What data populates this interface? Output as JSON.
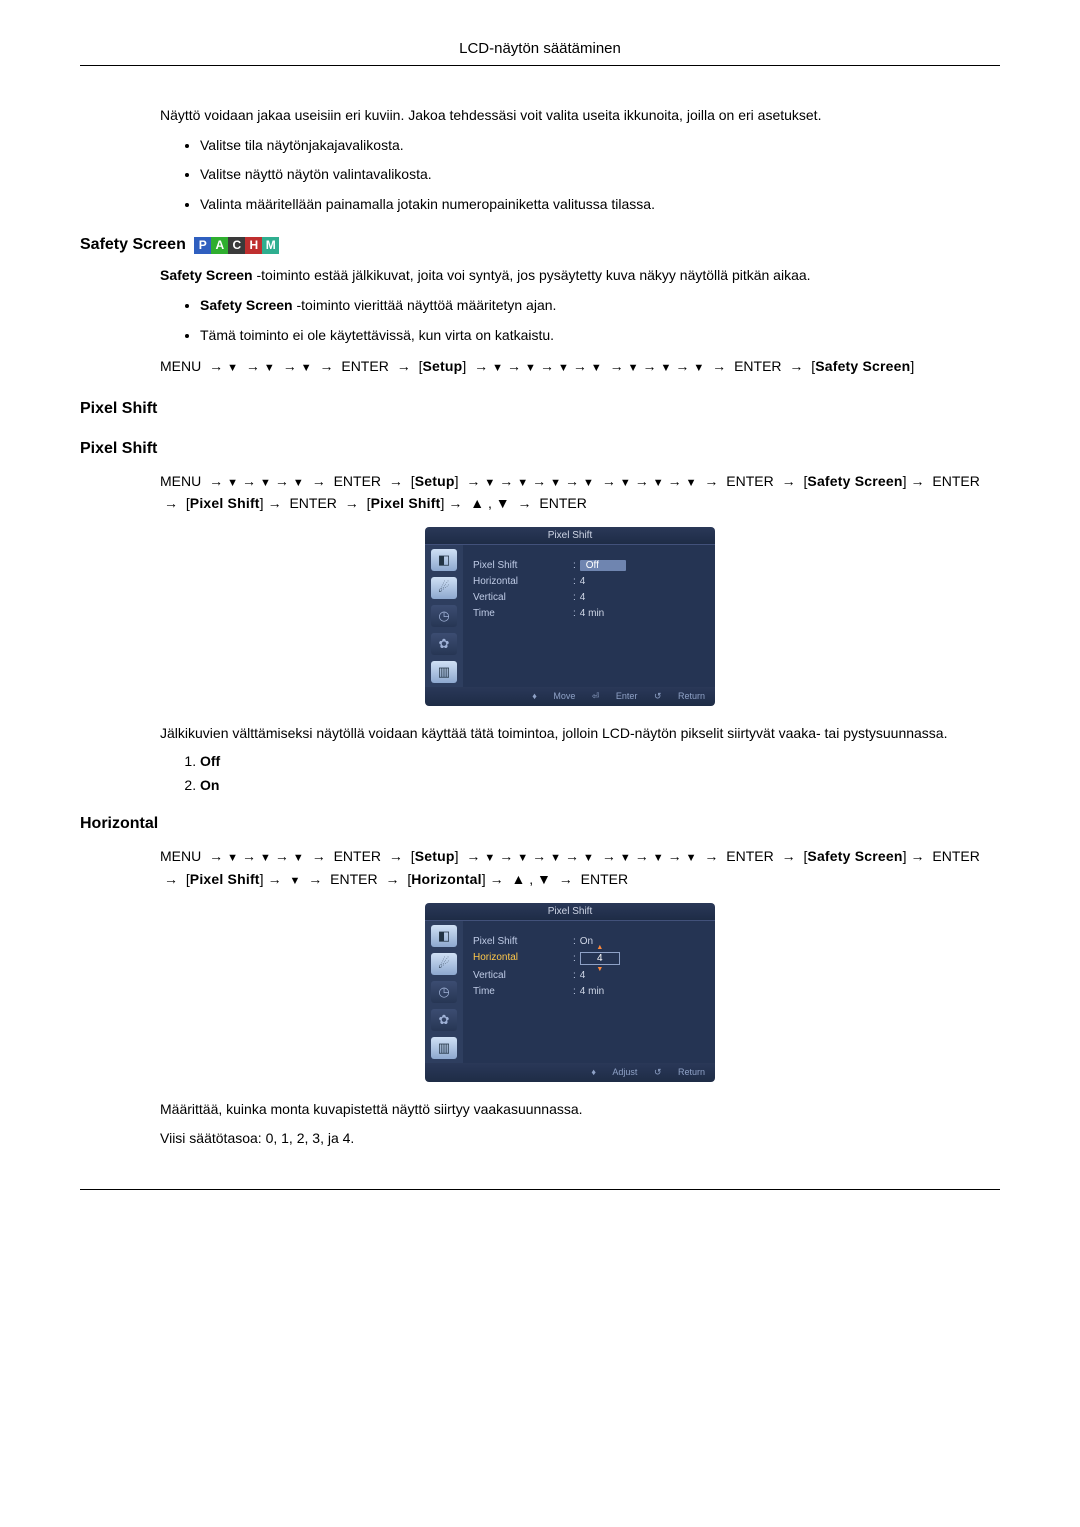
{
  "header": {
    "title": "LCD-näytön säätäminen"
  },
  "intro": {
    "para1": "Näyttö voidaan jakaa useisiin eri kuviin. Jakoa tehdessäsi voit valita useita ikkunoita, joilla on eri asetukset.",
    "bullets": [
      "Valitse tila näytönjakajavalikosta.",
      "Valitse näyttö näytön valintavalikosta.",
      "Valinta määritellään painamalla jotakin numeropainiketta valitussa tilassa."
    ]
  },
  "badges": [
    {
      "letter": "P",
      "color": "#2f5fbf"
    },
    {
      "letter": "A",
      "color": "#2fae2f"
    },
    {
      "letter": "C",
      "color": "#3a3a3a"
    },
    {
      "letter": "H",
      "color": "#bf2f2f"
    },
    {
      "letter": "M",
      "color": "#2fae8f"
    }
  ],
  "safety": {
    "heading": "Safety Screen",
    "para1a": "Safety Screen",
    "para1b": " -toiminto estää jälkikuvat, joita voi syntyä, jos pysäytetty kuva näkyy näytöllä pitkän aikaa.",
    "bullet1a": "Safety Screen",
    "bullet1b": " -toiminto vierittää näyttöä määritetyn ajan.",
    "bullet2": "Tämä toiminto ei ole käytettävissä, kun virta on katkaistu.",
    "path": {
      "menu": "MENU",
      "enter": "ENTER",
      "setup": "Setup",
      "safety": "Safety Screen"
    }
  },
  "pixelshift": {
    "heading1": "Pixel Shift",
    "heading2": "Pixel Shift",
    "path_labels": {
      "menu": "MENU",
      "enter": "ENTER",
      "setup": "Setup",
      "safety": "Safety Screen",
      "pixel": "Pixel Shift"
    },
    "osd": {
      "title": "Pixel Shift",
      "background": "#253453",
      "sidebar_bg": "#2e3e5f",
      "highlight_bg": "#6f85b0",
      "text_color": "#bfcbe6",
      "rows": {
        "pixel_shift_label": "Pixel Shift",
        "pixel_shift_value": "Off",
        "horizontal_label": "Horizontal",
        "horizontal_value": "4",
        "vertical_label": "Vertical",
        "vertical_value": "4",
        "time_label": "Time",
        "time_value": "4 min"
      },
      "footer": {
        "move": "Move",
        "enter": "Enter",
        "return": "Return"
      }
    },
    "desc": "Jälkikuvien välttämiseksi näytöllä voidaan käyttää tätä toimintoa, jolloin LCD-näytön pikselit siirtyvät vaaka- tai pystysuunnassa.",
    "options": [
      "Off",
      "On"
    ]
  },
  "horizontal": {
    "heading": "Horizontal",
    "path_labels": {
      "menu": "MENU",
      "enter": "ENTER",
      "setup": "Setup",
      "safety": "Safety Screen",
      "pixel": "Pixel Shift",
      "horizontal": "Horizontal"
    },
    "osd": {
      "title": "Pixel Shift",
      "rows": {
        "pixel_shift_label": "Pixel Shift",
        "pixel_shift_value": "On",
        "horizontal_label": "Horizontal",
        "horizontal_value": "4",
        "vertical_label": "Vertical",
        "vertical_value": "4",
        "time_label": "Time",
        "time_value": "4 min"
      },
      "footer": {
        "adjust": "Adjust",
        "return": "Return"
      }
    },
    "desc": "Määrittää, kuinka monta kuvapistettä näyttö siirtyy vaakasuunnassa.",
    "levels": "Viisi säätötasoa: 0, 1, 2, 3, ja 4."
  }
}
